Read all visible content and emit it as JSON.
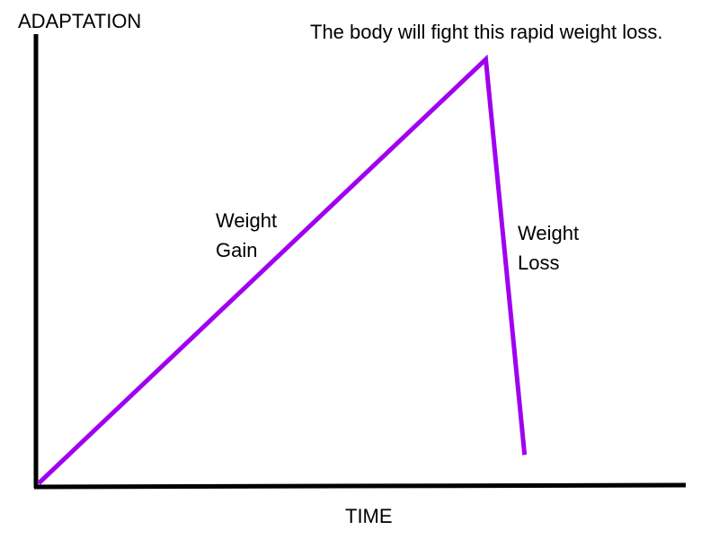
{
  "chart_data": {
    "type": "line",
    "title": "",
    "xlabel": "TIME",
    "ylabel": "ADAPTATION",
    "xlim": [
      0,
      100
    ],
    "ylim": [
      0,
      100
    ],
    "grid": false,
    "series": [
      {
        "color": "#A000F0",
        "points": [
          {
            "x": 0,
            "y": 0
          },
          {
            "x": 69.1,
            "y": 100
          },
          {
            "x": 75.1,
            "y": 6.7
          }
        ]
      }
    ],
    "annotations": [
      {
        "id": "rapid-loss-note",
        "text": "The body will fight this rapid weight loss."
      },
      {
        "id": "gain-label",
        "lines": [
          "Weight",
          "Gain"
        ]
      },
      {
        "id": "loss-label",
        "lines": [
          "Weight",
          "Loss"
        ]
      }
    ]
  }
}
